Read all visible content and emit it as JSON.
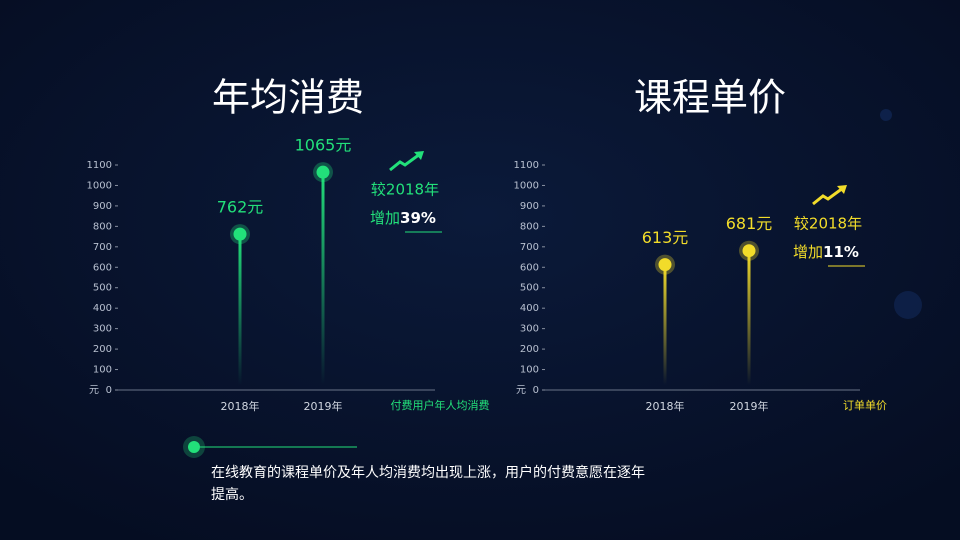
{
  "chart_data": [
    {
      "type": "lollipop",
      "title": "年均消费",
      "categories": [
        "2018年",
        "2019年"
      ],
      "values": [
        762,
        1065
      ],
      "value_labels": [
        "762元",
        "1065元"
      ],
      "color": "#22e07a",
      "ylim": [
        0,
        1100
      ],
      "yticks": [
        0,
        100,
        200,
        300,
        400,
        500,
        600,
        700,
        800,
        900,
        1000,
        1100
      ],
      "y_label": "元",
      "x_label": "付费用户年人均消费",
      "change_prefix": "较2018年",
      "change_label": "增加",
      "change_value": "39%"
    },
    {
      "type": "lollipop",
      "title": "课程单价",
      "categories": [
        "2018年",
        "2019年"
      ],
      "values": [
        613,
        681
      ],
      "value_labels": [
        "613元",
        "681元"
      ],
      "color": "#f2dc2a",
      "ylim": [
        0,
        1100
      ],
      "yticks": [
        0,
        100,
        200,
        300,
        400,
        500,
        600,
        700,
        800,
        900,
        1000,
        1100
      ],
      "y_label": "元",
      "x_label": "订单单价",
      "change_prefix": "较2018年",
      "change_label": "增加",
      "change_value": "11%"
    }
  ],
  "note": "在线教育的课程单价及年人均消费均出现上涨，用户的付费意愿在逐年提高。"
}
